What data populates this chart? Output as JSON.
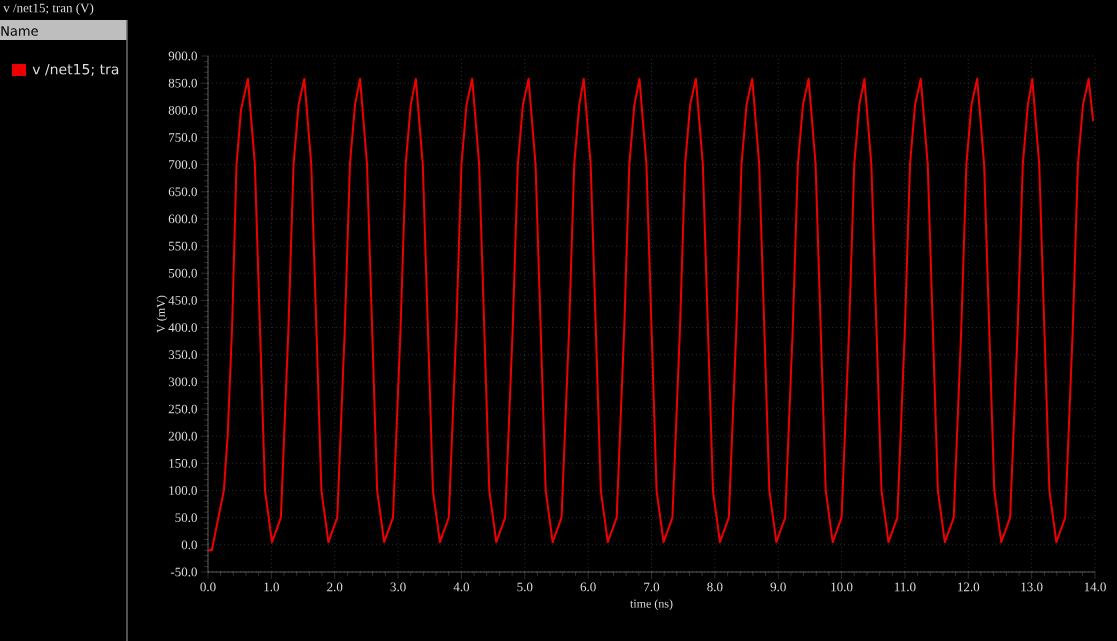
{
  "chart_data": {
    "type": "line",
    "title": "v /net15; tran (V)",
    "xlabel": "time (ns)",
    "ylabel": "V (mV)",
    "legend_title": "Name",
    "legend": "left",
    "grid": true,
    "xlim": [
      0,
      14
    ],
    "ylim": [
      -50,
      900
    ],
    "xticks": [
      {
        "value": 0,
        "label": "0.0"
      },
      {
        "value": 1,
        "label": "1.0"
      },
      {
        "value": 2,
        "label": "2.0"
      },
      {
        "value": 3,
        "label": "3.0"
      },
      {
        "value": 4,
        "label": "4.0"
      },
      {
        "value": 5,
        "label": "5.0"
      },
      {
        "value": 6,
        "label": "6.0"
      },
      {
        "value": 7,
        "label": "7.0"
      },
      {
        "value": 8,
        "label": "8.0"
      },
      {
        "value": 9,
        "label": "9.0"
      },
      {
        "value": 10,
        "label": "10.0"
      },
      {
        "value": 11,
        "label": "11.0"
      },
      {
        "value": 12,
        "label": "12.0"
      },
      {
        "value": 13,
        "label": "13.0"
      },
      {
        "value": 14,
        "label": "14.0"
      }
    ],
    "yticks": [
      {
        "value": -50,
        "label": "-50.0"
      },
      {
        "value": 0,
        "label": "0.0"
      },
      {
        "value": 50,
        "label": "50.0"
      },
      {
        "value": 100,
        "label": "100.0"
      },
      {
        "value": 150,
        "label": "150.0"
      },
      {
        "value": 200,
        "label": "200.0"
      },
      {
        "value": 250,
        "label": "250.0"
      },
      {
        "value": 300,
        "label": "300.0"
      },
      {
        "value": 350,
        "label": "350.0"
      },
      {
        "value": 400,
        "label": "400.0"
      },
      {
        "value": 450,
        "label": "450.0"
      },
      {
        "value": 500,
        "label": "500.0"
      },
      {
        "value": 550,
        "label": "550.0"
      },
      {
        "value": 600,
        "label": "600.0"
      },
      {
        "value": 650,
        "label": "650.0"
      },
      {
        "value": 700,
        "label": "700.0"
      },
      {
        "value": 750,
        "label": "750.0"
      },
      {
        "value": 800,
        "label": "800.0"
      },
      {
        "value": 850,
        "label": "850.0"
      },
      {
        "value": 900,
        "label": "900.0"
      }
    ],
    "series": [
      {
        "name": "v /net15; tra",
        "color": "#ee0000",
        "x": [
          0,
          0.06,
          0.25,
          0.31,
          0.38,
          0.45,
          0.52,
          0.63,
          0.74,
          0.82,
          0.9,
          1.01,
          1.15,
          1.27,
          1.35,
          1.43,
          1.52,
          1.63,
          1.71,
          1.79,
          1.9,
          2.04,
          2.16,
          2.24,
          2.32,
          2.4,
          2.51,
          2.59,
          2.67,
          2.78,
          2.92,
          3.04,
          3.12,
          3.2,
          3.28,
          3.39,
          3.47,
          3.55,
          3.66,
          3.8,
          3.92,
          4.0,
          4.08,
          4.17,
          4.28,
          4.36,
          4.44,
          4.55,
          4.69,
          4.81,
          4.89,
          4.97,
          5.06,
          5.17,
          5.25,
          5.33,
          5.44,
          5.58,
          5.7,
          5.78,
          5.86,
          5.93,
          6.04,
          6.12,
          6.2,
          6.31,
          6.45,
          6.57,
          6.65,
          6.73,
          6.81,
          6.92,
          7.0,
          7.08,
          7.19,
          7.33,
          7.45,
          7.53,
          7.61,
          7.7,
          7.81,
          7.89,
          7.97,
          8.08,
          8.22,
          8.34,
          8.42,
          8.5,
          8.59,
          8.7,
          8.78,
          8.86,
          8.97,
          9.11,
          9.23,
          9.31,
          9.39,
          9.48,
          9.59,
          9.67,
          9.75,
          9.86,
          10.0,
          10.12,
          10.2,
          10.28,
          10.36,
          10.47,
          10.55,
          10.63,
          10.74,
          10.88,
          11.0,
          11.08,
          11.16,
          11.25,
          11.36,
          11.44,
          11.52,
          11.63,
          11.77,
          11.89,
          11.97,
          12.05,
          12.14,
          12.25,
          12.33,
          12.41,
          12.52,
          12.66,
          12.78,
          12.86,
          12.94,
          13.01,
          13.12,
          13.2,
          13.28,
          13.39,
          13.53,
          13.65,
          13.73,
          13.81,
          13.9,
          13.97
        ],
        "values": [
          -10,
          -10,
          100,
          200,
          400,
          700,
          800,
          858,
          700,
          400,
          100,
          5,
          50,
          400,
          700,
          810,
          858,
          700,
          400,
          100,
          5,
          50,
          400,
          700,
          810,
          858,
          700,
          400,
          100,
          5,
          50,
          400,
          700,
          810,
          858,
          700,
          400,
          100,
          5,
          50,
          400,
          700,
          810,
          858,
          700,
          400,
          100,
          5,
          50,
          400,
          700,
          810,
          858,
          700,
          400,
          100,
          5,
          50,
          400,
          700,
          810,
          858,
          700,
          400,
          100,
          5,
          50,
          400,
          700,
          810,
          858,
          700,
          400,
          100,
          5,
          50,
          400,
          700,
          810,
          858,
          700,
          400,
          100,
          5,
          50,
          400,
          700,
          810,
          858,
          700,
          400,
          100,
          5,
          50,
          400,
          700,
          810,
          858,
          700,
          400,
          100,
          5,
          50,
          400,
          700,
          810,
          858,
          700,
          400,
          100,
          5,
          50,
          400,
          700,
          810,
          858,
          700,
          400,
          100,
          5,
          50,
          400,
          700,
          810,
          858,
          700,
          400,
          100,
          5,
          50,
          400,
          700,
          810,
          858,
          700,
          400,
          100,
          5,
          50,
          400,
          700,
          810,
          858,
          780
        ]
      }
    ]
  }
}
